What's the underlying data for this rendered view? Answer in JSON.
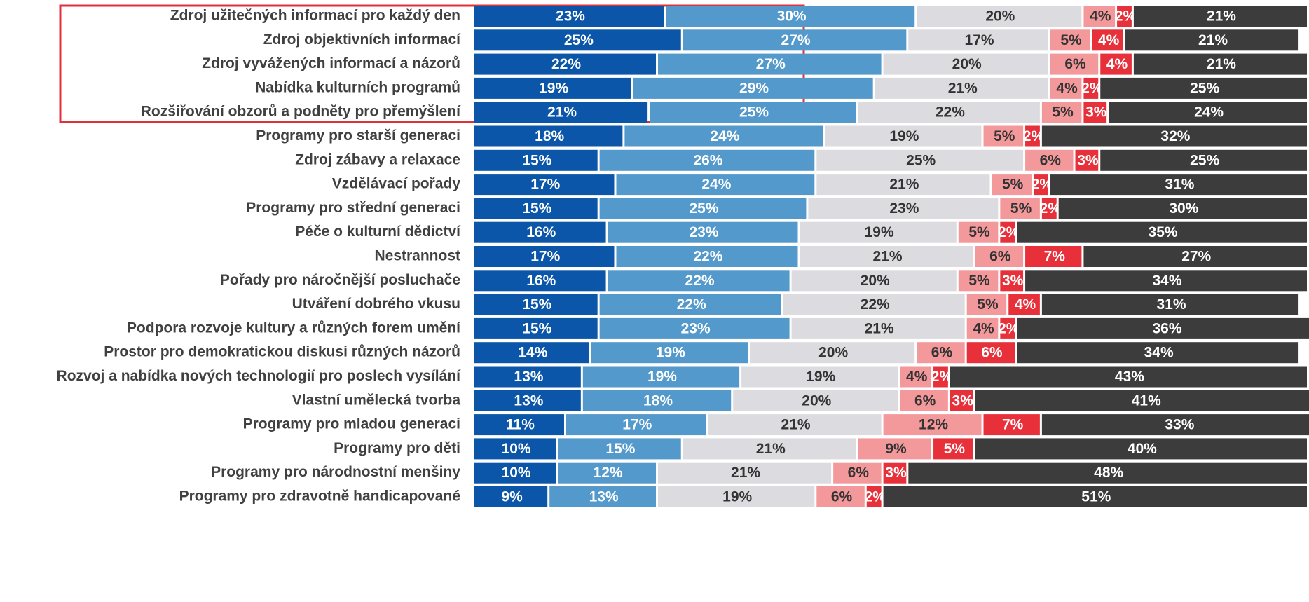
{
  "chart_data": {
    "type": "stacked-bar-horizontal",
    "categories": [
      "Zdroj užitečných informací pro každý den",
      "Zdroj objektivních informací",
      "Zdroj vyvážených informací a názorů",
      "Nabídka kulturních programů",
      "Rozšiřování obzorů a podněty pro přemýšlení",
      "Programy pro starší generaci",
      "Zdroj zábavy a relaxace",
      "Vzdělávací pořady",
      "Programy pro střední generaci",
      "Péče o kulturní dědictví",
      "Nestrannost",
      "Pořady pro náročnější posluchače",
      "Utváření dobrého vkusu",
      "Podpora rozvoje kultury a různých forem umění",
      "Prostor pro demokratickou diskusi různých názorů",
      "Rozvoj a nabídka nových technologií pro poslech vysílání",
      "Vlastní umělecká tvorba",
      "Programy pro mladou generaci",
      "Programy pro děti",
      "Programy pro národnostní menšiny",
      "Programy pro zdravotně handicapované"
    ],
    "xlim": [
      0,
      100
    ],
    "series": [
      {
        "color": "#0b56a8",
        "values": [
          23,
          25,
          22,
          19,
          21,
          18,
          15,
          17,
          15,
          16,
          17,
          16,
          15,
          15,
          14,
          13,
          13,
          11,
          10,
          10,
          9
        ],
        "value_labels": [
          "23%",
          "25%",
          "22%",
          "19%",
          "21%",
          "18%",
          "15%",
          "17%",
          "15%",
          "16%",
          "17%",
          "16%",
          "15%",
          "15%",
          "14%",
          "13%",
          "13%",
          "11%",
          "10%",
          "10%",
          "9%"
        ]
      },
      {
        "color": "#5499cc",
        "values": [
          30,
          27,
          27,
          29,
          25,
          24,
          26,
          24,
          25,
          23,
          22,
          22,
          22,
          23,
          19,
          19,
          18,
          17,
          15,
          12,
          13
        ],
        "value_labels": [
          "30%",
          "27%",
          "27%",
          "29%",
          "25%",
          "24%",
          "26%",
          "24%",
          "25%",
          "23%",
          "22%",
          "22%",
          "22%",
          "23%",
          "19%",
          "19%",
          "18%",
          "17%",
          "15%",
          "12%",
          "13%"
        ]
      },
      {
        "color": "#dcdce0",
        "values": [
          20,
          17,
          20,
          21,
          22,
          19,
          25,
          21,
          23,
          19,
          21,
          20,
          22,
          21,
          20,
          19,
          20,
          21,
          21,
          21,
          19
        ],
        "value_labels": [
          "20%",
          "17%",
          "20%",
          "21%",
          "22%",
          "19%",
          "25%",
          "21%",
          "23%",
          "19%",
          "21%",
          "20%",
          "22%",
          "21%",
          "20%",
          "19%",
          "20%",
          "21%",
          "21%",
          "21%",
          "19%"
        ]
      },
      {
        "color": "#f4999b",
        "values": [
          4,
          5,
          6,
          4,
          5,
          5,
          6,
          5,
          5,
          5,
          6,
          5,
          5,
          4,
          6,
          4,
          6,
          12,
          9,
          6,
          6
        ],
        "value_labels": [
          "4%",
          "5%",
          "6%",
          "4%",
          "5%",
          "5%",
          "6%",
          "5%",
          "5%",
          "5%",
          "6%",
          "5%",
          "5%",
          "4%",
          "6%",
          "4%",
          "6%",
          "12%",
          "9%",
          "6%",
          "6%"
        ]
      },
      {
        "color": "#e8303a",
        "values": [
          2,
          4,
          4,
          2,
          3,
          2,
          3,
          2,
          2,
          2,
          7,
          3,
          4,
          2,
          6,
          2,
          3,
          7,
          5,
          3,
          2
        ],
        "value_labels": [
          "2%",
          "4%",
          "4%",
          "2%",
          "3%",
          "2%",
          "3%",
          "2%",
          "2%",
          "2%",
          "7%",
          "3%",
          "4%",
          "2%",
          "6%",
          "2%",
          "3%",
          "7%",
          "5%",
          "3%",
          "2%"
        ]
      },
      {
        "color": "#3c3c3c",
        "values": [
          21,
          21,
          21,
          25,
          24,
          32,
          25,
          31,
          30,
          35,
          27,
          34,
          31,
          36,
          34,
          43,
          41,
          33,
          40,
          48,
          51
        ],
        "value_labels": [
          "21%",
          "21%",
          "21%",
          "25%",
          "24%",
          "32%",
          "25%",
          "31%",
          "30%",
          "35%",
          "27%",
          "34%",
          "31%",
          "36%",
          "34%",
          "43%",
          "41%",
          "33%",
          "40%",
          "48%",
          "51%"
        ]
      }
    ]
  }
}
